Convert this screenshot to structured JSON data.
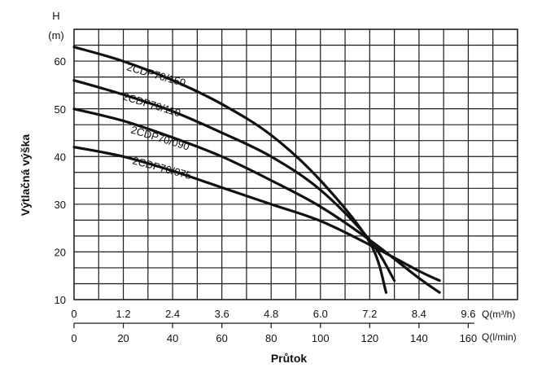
{
  "chart_data": {
    "type": "line",
    "ylabel": "Výtlačná výška",
    "y_unit_top": "H",
    "y_unit_bottom": "(m)",
    "xlabel": "Průtok",
    "x_axis_primary": {
      "unit": "Q(m³/h)",
      "ticks": [
        "0",
        "1.2",
        "2.4",
        "3.6",
        "4.8",
        "6.0",
        "7.2",
        "8.4",
        "9.6"
      ],
      "range": [
        0,
        10.8
      ]
    },
    "x_axis_secondary": {
      "unit": "Q(l/min)",
      "ticks": [
        "0",
        "20",
        "40",
        "60",
        "80",
        "100",
        "120",
        "140",
        "160"
      ]
    },
    "y_axis": {
      "ticks": [
        "10",
        "20",
        "30",
        "40",
        "50",
        "60"
      ],
      "range": [
        10,
        66.7
      ]
    },
    "grid": true,
    "series": [
      {
        "name": "2CDP70/150",
        "x": [
          0,
          1.2,
          2.4,
          3.6,
          4.8,
          6.0,
          7.2,
          7.6
        ],
        "y": [
          63,
          60,
          56,
          51,
          44.5,
          35,
          22,
          11.5
        ]
      },
      {
        "name": "2CDP70/110",
        "x": [
          0,
          1.2,
          2.4,
          3.6,
          4.8,
          6.0,
          7.2,
          7.8
        ],
        "y": [
          56,
          53,
          49.5,
          45,
          40,
          33,
          22.5,
          14
        ]
      },
      {
        "name": "2CDP70/090",
        "x": [
          0,
          1.2,
          2.4,
          3.6,
          4.8,
          6.0,
          7.2,
          8.4,
          8.9
        ],
        "y": [
          50,
          47.5,
          44,
          40,
          35,
          29.5,
          22.5,
          14.5,
          11.5
        ]
      },
      {
        "name": "2CDP70/075",
        "x": [
          0,
          1.2,
          2.4,
          3.6,
          4.8,
          6.0,
          7.2,
          8.4,
          8.9
        ],
        "y": [
          42,
          40,
          37,
          33.5,
          30,
          26.5,
          21.5,
          16,
          14
        ]
      }
    ]
  }
}
